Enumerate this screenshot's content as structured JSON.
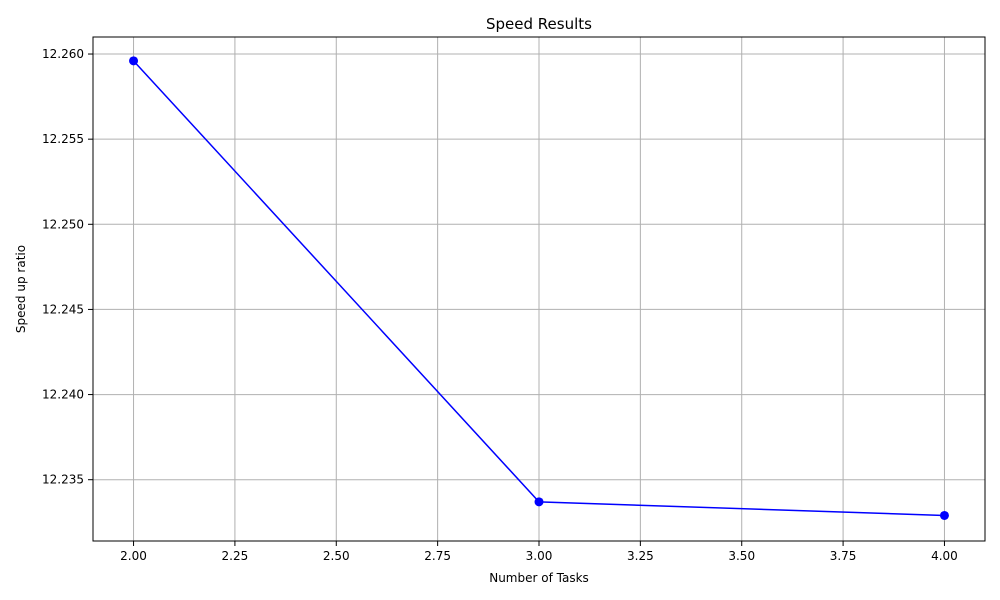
{
  "chart_data": {
    "type": "line",
    "title": "Speed Results",
    "xlabel": "Number of Tasks",
    "ylabel": "Speed up ratio",
    "xlim": [
      1.9,
      4.1
    ],
    "ylim": [
      12.2314,
      12.261
    ],
    "grid": true,
    "x_ticks": [
      "2.00",
      "2.25",
      "2.50",
      "2.75",
      "3.00",
      "3.25",
      "3.50",
      "3.75",
      "4.00"
    ],
    "y_ticks": [
      "12.235",
      "12.240",
      "12.245",
      "12.250",
      "12.255",
      "12.260"
    ],
    "series": [
      {
        "color": "#0000ff",
        "marker": "circle",
        "x": [
          2,
          3,
          4
        ],
        "y": [
          12.2596,
          12.2337,
          12.2329
        ]
      }
    ]
  }
}
